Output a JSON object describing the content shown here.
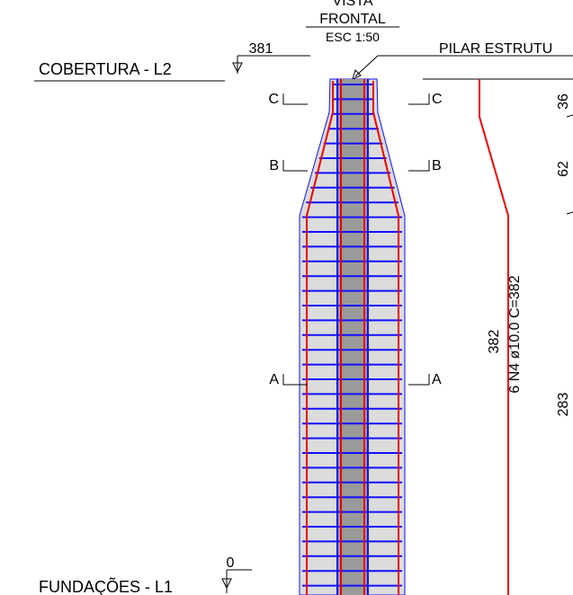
{
  "title": {
    "line1": "VISTA",
    "line2": "FRONTAL",
    "scale": "ESC 1:50"
  },
  "levels": [
    {
      "label": "COBERTURA - L2",
      "elevation": "381"
    },
    {
      "label": "FUNDAÇÕES - L1",
      "elevation": "0"
    }
  ],
  "callout": "PILAR ESTRUTU",
  "sections": [
    {
      "left": "C",
      "right": "C"
    },
    {
      "left": "B",
      "right": "B"
    },
    {
      "left": "A",
      "right": "A"
    }
  ],
  "dimensions": [
    "36",
    "62",
    "283"
  ],
  "rebar": {
    "length": "382",
    "spec": "6 N4 ø10.0 C=382"
  }
}
